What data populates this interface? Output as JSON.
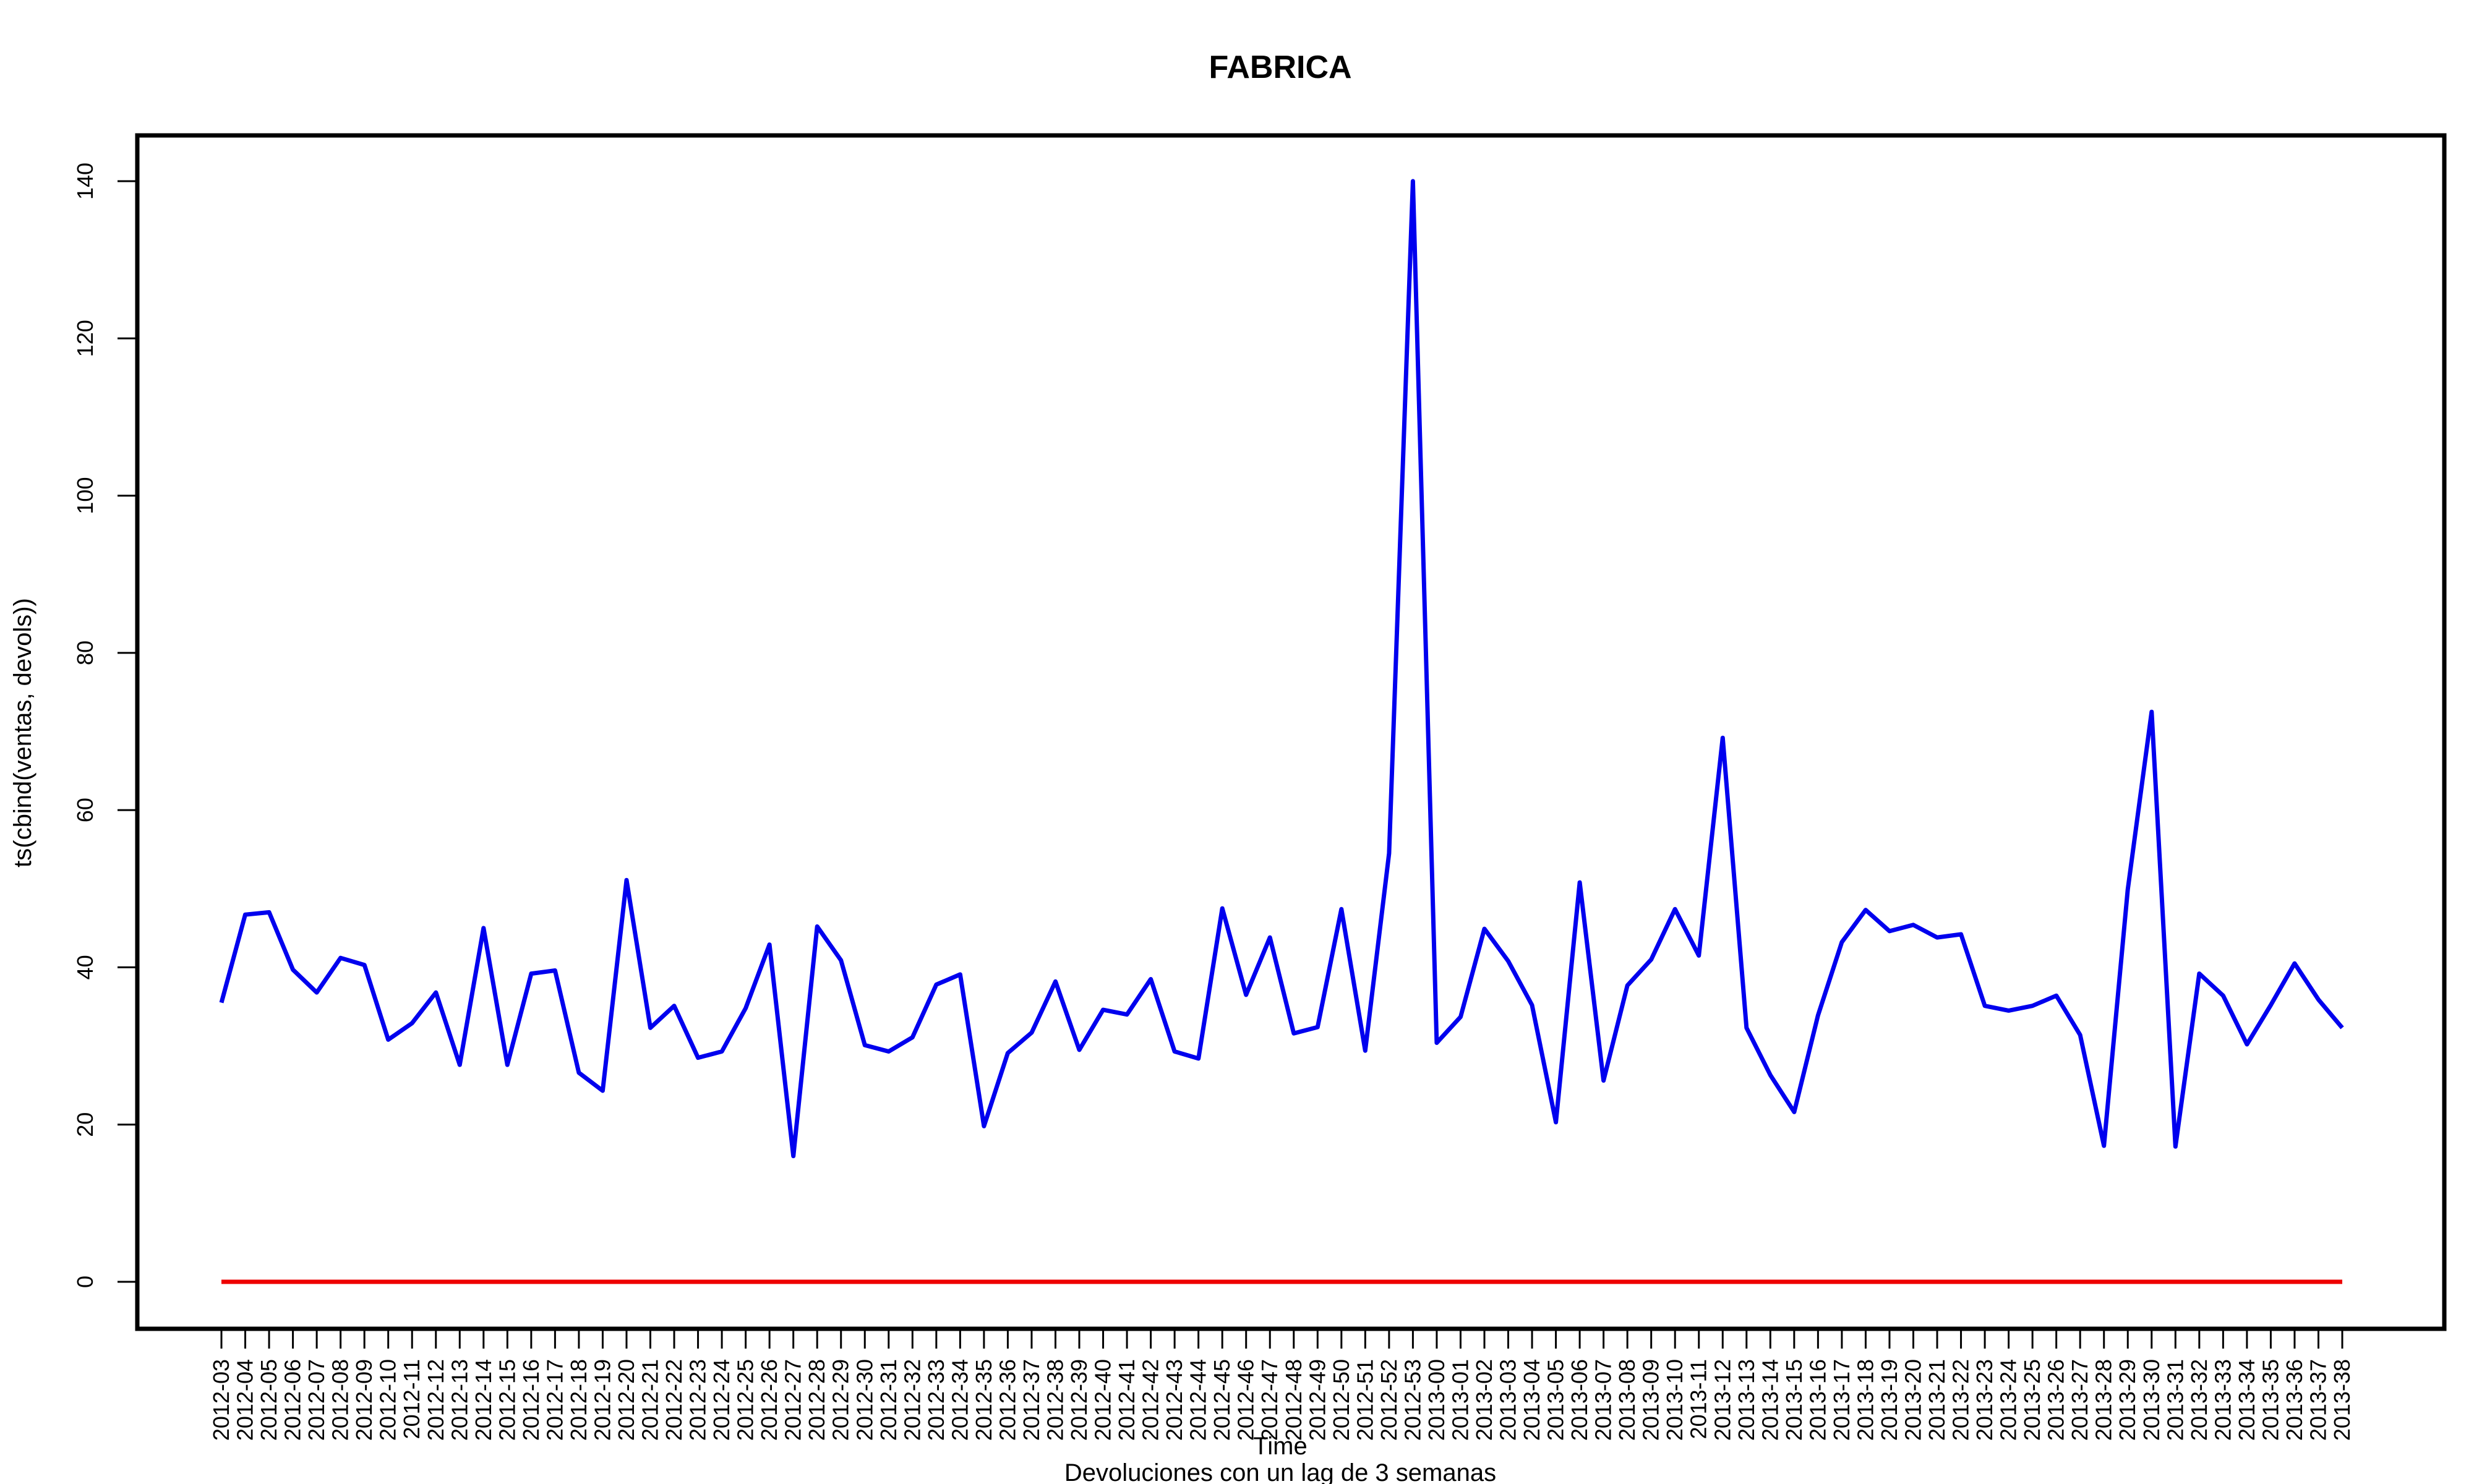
{
  "chart_data": {
    "type": "line",
    "title": "FABRICA",
    "xlabel": "Time",
    "sublabel": "Devoluciones con un lag de 3 semanas",
    "ylabel": "ts(cbind(ventas, devols))",
    "ylim": [
      0,
      140
    ],
    "yticks": [
      0,
      20,
      40,
      60,
      80,
      100,
      120,
      140
    ],
    "categories": [
      "2012-03",
      "2012-04",
      "2012-05",
      "2012-06",
      "2012-07",
      "2012-08",
      "2012-09",
      "2012-10",
      "2012-11",
      "2012-12",
      "2012-13",
      "2012-14",
      "2012-15",
      "2012-16",
      "2012-17",
      "2012-18",
      "2012-19",
      "2012-20",
      "2012-21",
      "2012-22",
      "2012-23",
      "2012-24",
      "2012-25",
      "2012-26",
      "2012-27",
      "2012-28",
      "2012-29",
      "2012-30",
      "2012-31",
      "2012-32",
      "2012-33",
      "2012-34",
      "2012-35",
      "2012-36",
      "2012-37",
      "2012-38",
      "2012-39",
      "2012-40",
      "2012-41",
      "2012-42",
      "2012-43",
      "2012-44",
      "2012-45",
      "2012-46",
      "2012-47",
      "2012-48",
      "2012-49",
      "2012-50",
      "2012-51",
      "2012-52",
      "2012-53",
      "2013-00",
      "2013-01",
      "2013-02",
      "2013-03",
      "2013-04",
      "2013-05",
      "2013-06",
      "2013-07",
      "2013-08",
      "2013-09",
      "2013-10",
      "2013-11",
      "2013-12",
      "2013-13",
      "2013-14",
      "2013-15",
      "2013-16",
      "2013-17",
      "2013-18",
      "2013-19",
      "2013-20",
      "2013-21",
      "2013-22",
      "2013-23",
      "2013-24",
      "2013-25",
      "2013-26",
      "2013-27",
      "2013-28",
      "2013-29",
      "2013-30",
      "2013-31",
      "2013-32",
      "2013-33",
      "2013-34",
      "2013-35",
      "2013-36",
      "2013-37",
      "2013-38"
    ],
    "series": [
      {
        "color": "#0000ee",
        "values": [
          35.5,
          46.7,
          47,
          39.7,
          36.8,
          41.2,
          40.3,
          30.8,
          32.9,
          36.8,
          27.6,
          45,
          27.6,
          39.2,
          39.6,
          26.6,
          24.3,
          51.1,
          32.3,
          35.1,
          28.5,
          29.3,
          34.8,
          42.9,
          16,
          45.2,
          40.9,
          30.1,
          29.3,
          31.1,
          37.8,
          39.1,
          19.8,
          29.1,
          31.7,
          38.2,
          29.5,
          34.6,
          34,
          38.5,
          29.3,
          28.4,
          47.5,
          36.5,
          43.8,
          31.6,
          32.4,
          47.4,
          29.4,
          54.5,
          140,
          30.4,
          33.7,
          44.9,
          40.8,
          35.2,
          20.3,
          50.8,
          25.6,
          37.7,
          41,
          47.4,
          41.5,
          69.2,
          32.3,
          26.3,
          21.6,
          33.9,
          43.2,
          47.3,
          44.6,
          45.4,
          43.8,
          44.2,
          35.1,
          34.5,
          35.1,
          36.4,
          31.4,
          17.3,
          49.9,
          72.5,
          17.2,
          39.2,
          36.4,
          30.2,
          35.2,
          40.5,
          35.9,
          32.3
        ]
      },
      {
        "color": "#ee0000",
        "values": [
          0,
          0,
          0,
          0,
          0,
          0,
          0,
          0,
          0,
          0,
          0,
          0,
          0,
          0,
          0,
          0,
          0,
          0,
          0,
          0,
          0,
          0,
          0,
          0,
          0,
          0,
          0,
          0,
          0,
          0,
          0,
          0,
          0,
          0,
          0,
          0,
          0,
          0,
          0,
          0,
          0,
          0,
          0,
          0,
          0,
          0,
          0,
          0,
          0,
          0,
          0,
          0,
          0,
          0,
          0,
          0,
          0,
          0,
          0,
          0,
          0,
          0,
          0,
          0,
          0,
          0,
          0,
          0,
          0,
          0,
          0,
          0,
          0,
          0,
          0,
          0,
          0,
          0,
          0,
          0,
          0,
          0,
          0,
          0,
          0,
          0,
          0,
          0,
          0,
          0
        ]
      }
    ]
  }
}
